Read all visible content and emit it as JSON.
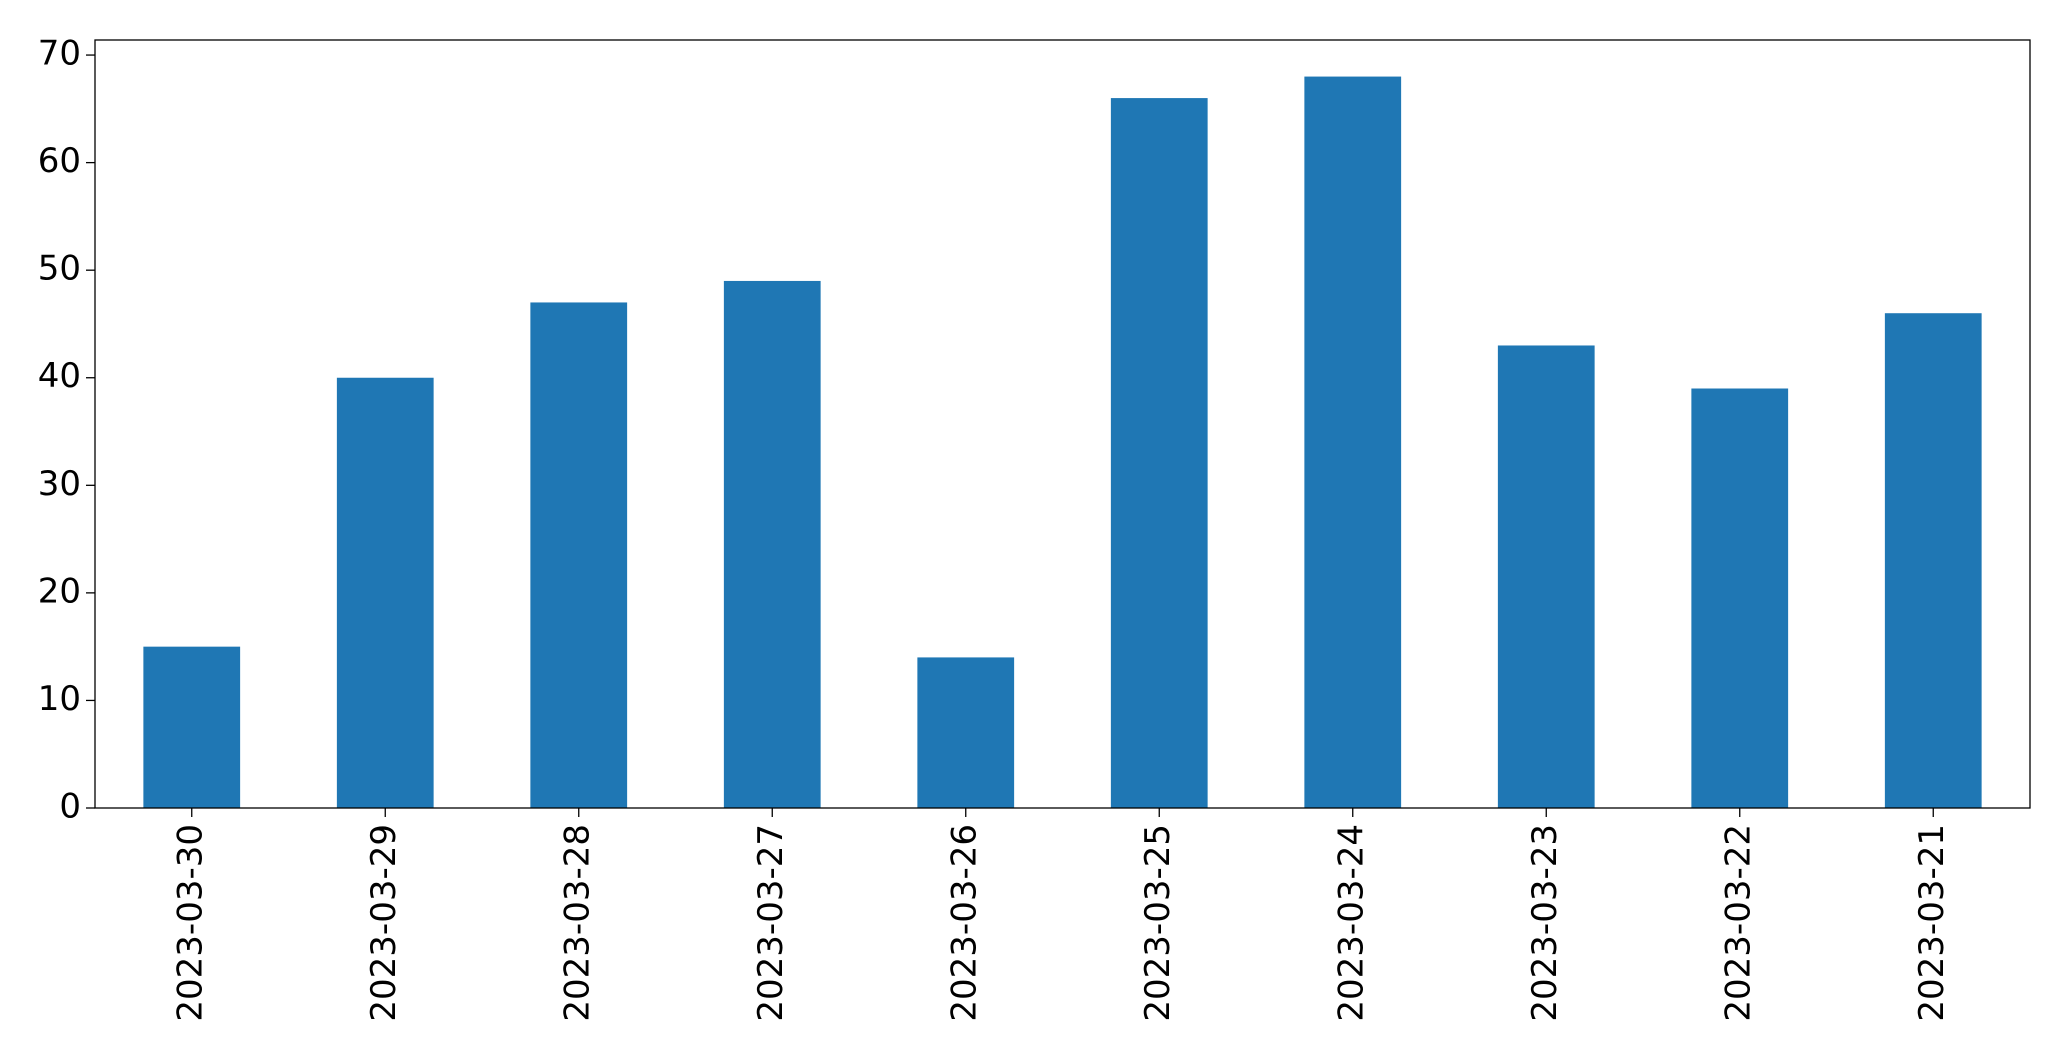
{
  "chart_data": {
    "type": "bar",
    "categories": [
      "2023-03-30",
      "2023-03-29",
      "2023-03-28",
      "2023-03-27",
      "2023-03-26",
      "2023-03-25",
      "2023-03-24",
      "2023-03-23",
      "2023-03-22",
      "2023-03-21"
    ],
    "values": [
      15,
      40,
      47,
      49,
      14,
      66,
      68,
      43,
      39,
      46
    ],
    "color": "#1f77b4",
    "ylim": [
      0,
      71.4
    ],
    "yticks": [
      0,
      10,
      20,
      30,
      40,
      50,
      60,
      70
    ],
    "grid": false
  }
}
